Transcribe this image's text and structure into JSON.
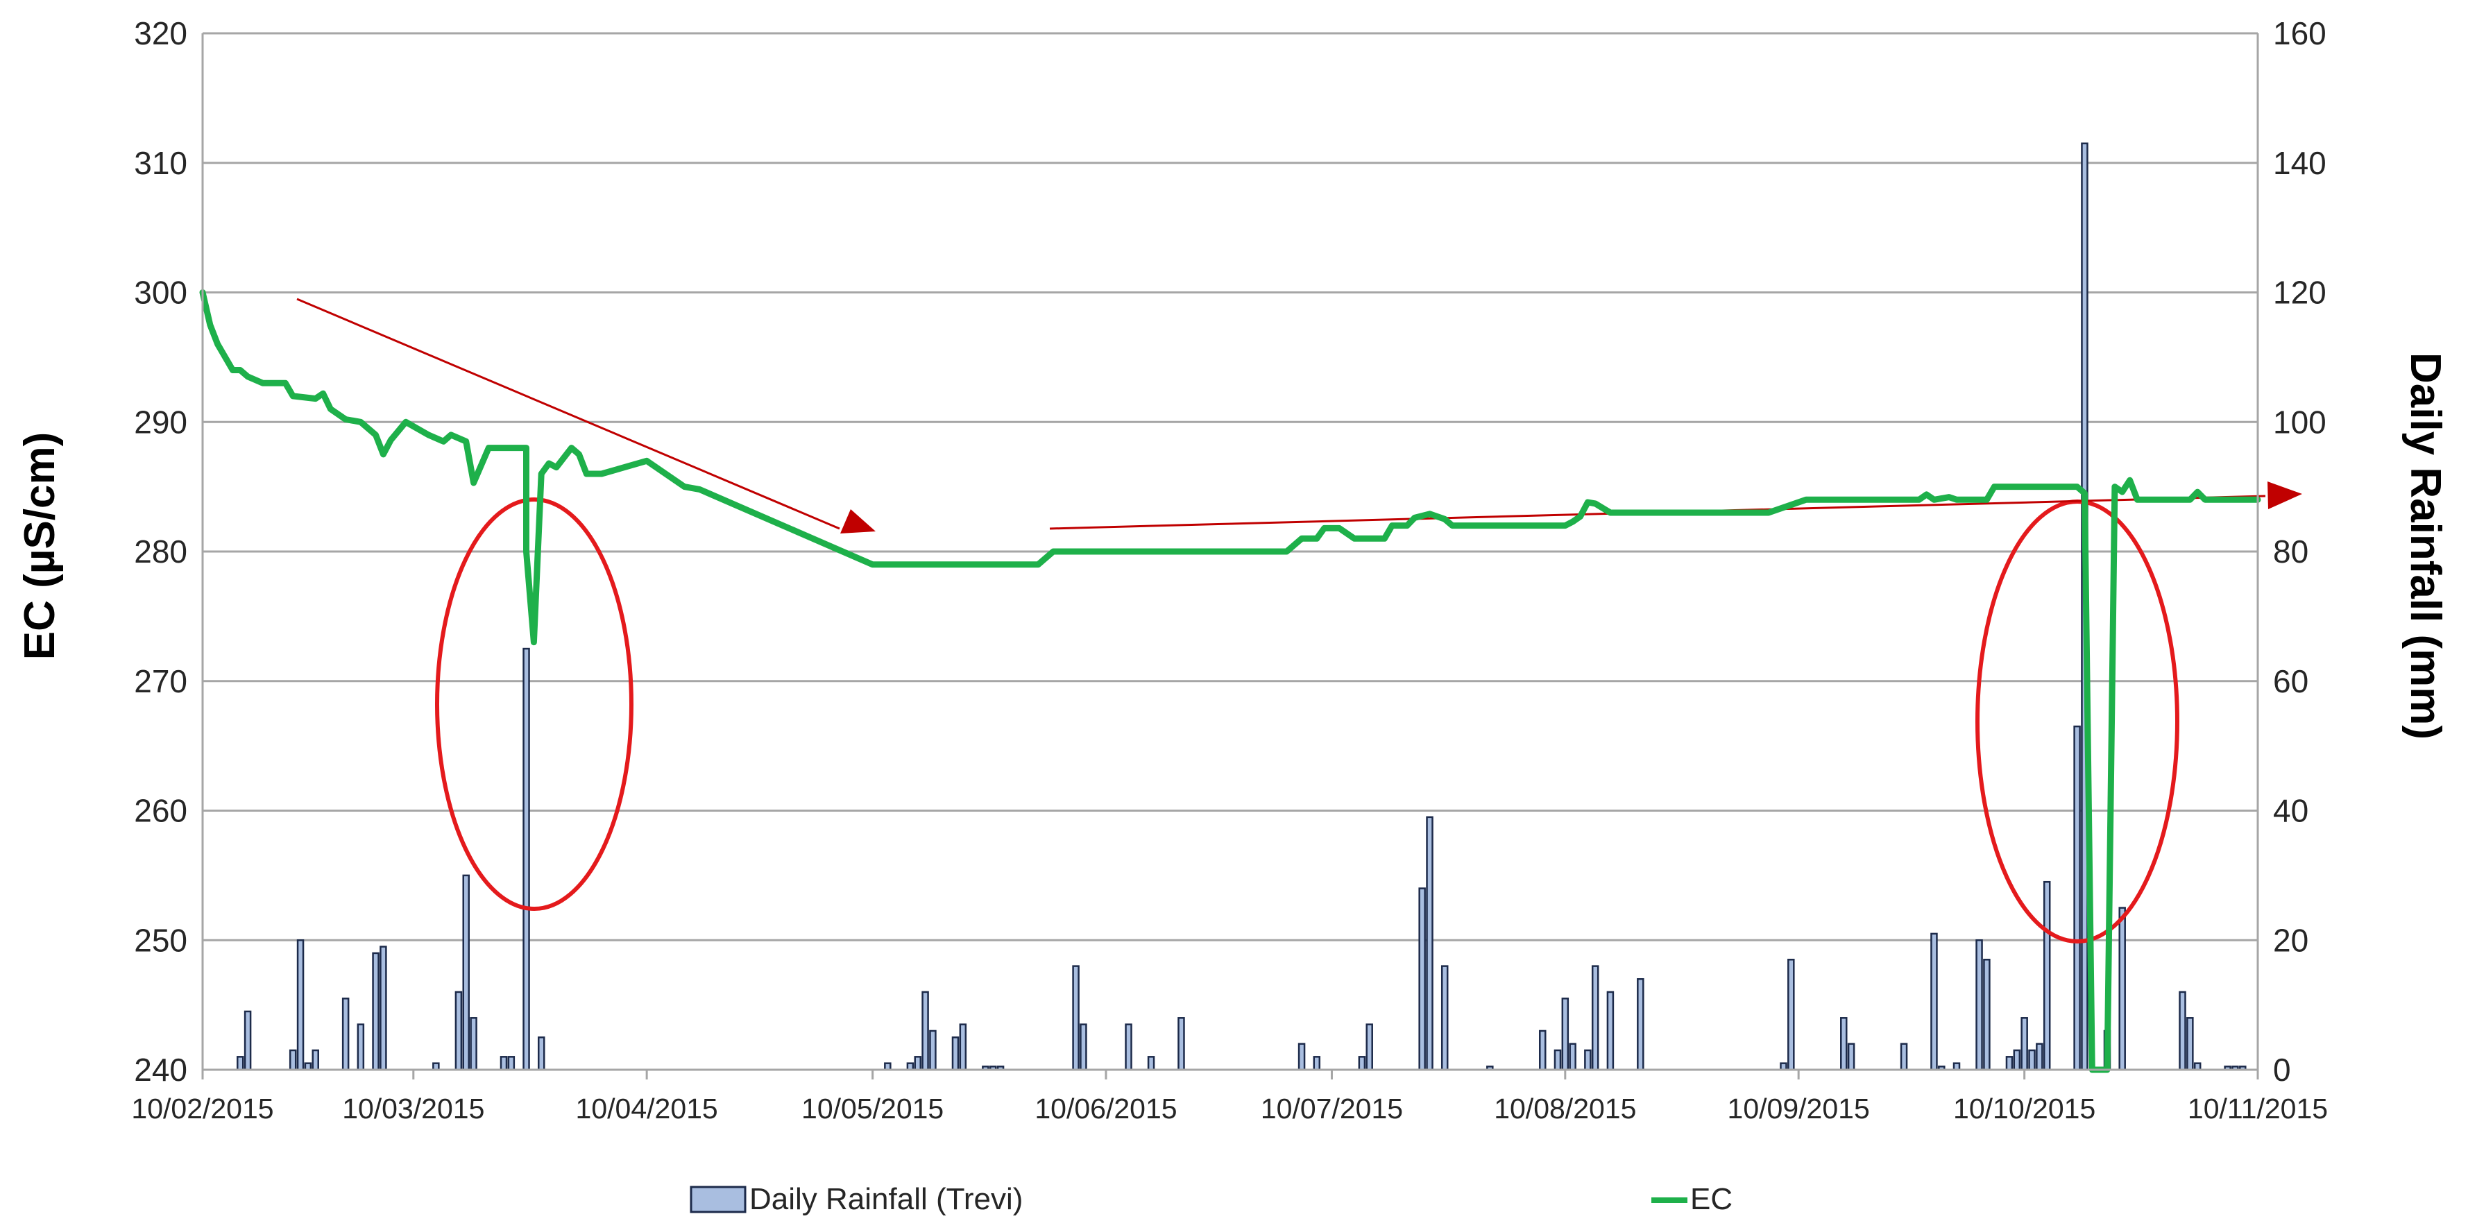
{
  "chart_data": {
    "type": "bar+line",
    "title": "",
    "xlabel": "",
    "ylabel_left": "EC (µS/cm)",
    "ylabel_right": "Daily Rainfall (mm)",
    "ylim_left": [
      240,
      320
    ],
    "ylim_right": [
      0,
      160
    ],
    "yticks_left": [
      240,
      250,
      260,
      270,
      280,
      290,
      300,
      310,
      320
    ],
    "yticks_right": [
      0,
      20,
      40,
      60,
      80,
      100,
      120,
      140,
      160
    ],
    "xlim": [
      "2015-02-10",
      "2015-11-10"
    ],
    "xtick_dates": [
      "2015-02-10",
      "2015-03-10",
      "2015-04-10",
      "2015-05-10",
      "2015-06-10",
      "2015-07-10",
      "2015-08-10",
      "2015-09-10",
      "2015-10-10",
      "2015-11-10"
    ],
    "xtick_labels": [
      "10/02/2015",
      "10/03/2015",
      "10/04/2015",
      "10/05/2015",
      "10/06/2015",
      "10/07/2015",
      "10/08/2015",
      "10/09/2015",
      "10/10/2015",
      "10/11/2015"
    ],
    "grid": true,
    "legend_position": "bottom",
    "colors": {
      "rainfall_fill": "#a9bee0",
      "rainfall_edge": "#1c2a4a",
      "ec_line": "#1eb04a",
      "annotation": "#e41a1c",
      "trend_arrow": "#c00000",
      "gridline": "#a6a6a6"
    },
    "series": [
      {
        "name": "Daily Rainfall (Trevi)",
        "axis": "right",
        "kind": "bar",
        "points": [
          [
            "2015-02-15",
            2
          ],
          [
            "2015-02-16",
            9
          ],
          [
            "2015-02-22",
            3
          ],
          [
            "2015-02-23",
            20
          ],
          [
            "2015-02-24",
            1
          ],
          [
            "2015-02-25",
            3
          ],
          [
            "2015-02-29",
            11
          ],
          [
            "2015-03-03",
            7
          ],
          [
            "2015-03-05",
            18
          ],
          [
            "2015-03-06",
            19
          ],
          [
            "2015-03-13",
            1
          ],
          [
            "2015-03-16",
            12
          ],
          [
            "2015-03-17",
            30
          ],
          [
            "2015-03-18",
            8
          ],
          [
            "2015-03-22",
            2
          ],
          [
            "2015-03-23",
            2
          ],
          [
            "2015-03-25",
            65
          ],
          [
            "2015-03-27",
            5
          ],
          [
            "2015-05-12",
            1
          ],
          [
            "2015-05-15",
            1
          ],
          [
            "2015-05-16",
            2
          ],
          [
            "2015-05-17",
            12
          ],
          [
            "2015-05-18",
            6
          ],
          [
            "2015-05-21",
            5
          ],
          [
            "2015-05-22",
            7
          ],
          [
            "2015-05-25",
            0.5
          ],
          [
            "2015-05-26",
            0.5
          ],
          [
            "2015-05-27",
            0.5
          ],
          [
            "2015-06-06",
            16
          ],
          [
            "2015-06-07",
            7
          ],
          [
            "2015-06-13",
            7
          ],
          [
            "2015-06-16",
            2
          ],
          [
            "2015-06-20",
            8
          ],
          [
            "2015-07-06",
            4
          ],
          [
            "2015-07-08",
            2
          ],
          [
            "2015-07-14",
            2
          ],
          [
            "2015-07-15",
            7
          ],
          [
            "2015-07-22",
            28
          ],
          [
            "2015-07-23",
            39
          ],
          [
            "2015-07-25",
            16
          ],
          [
            "2015-07-31",
            0.5
          ],
          [
            "2015-08-07",
            6
          ],
          [
            "2015-08-09",
            3
          ],
          [
            "2015-08-10",
            11
          ],
          [
            "2015-08-11",
            4
          ],
          [
            "2015-08-13",
            3
          ],
          [
            "2015-08-14",
            16
          ],
          [
            "2015-08-16",
            12
          ],
          [
            "2015-08-20",
            14
          ],
          [
            "2015-09-08",
            1
          ],
          [
            "2015-09-09",
            17
          ],
          [
            "2015-09-16",
            8
          ],
          [
            "2015-09-17",
            4
          ],
          [
            "2015-09-24",
            4
          ],
          [
            "2015-09-28",
            21
          ],
          [
            "2015-09-29",
            0.5
          ],
          [
            "2015-10-01",
            1
          ],
          [
            "2015-10-04",
            20
          ],
          [
            "2015-10-05",
            17
          ],
          [
            "2015-10-08",
            2
          ],
          [
            "2015-10-09",
            3
          ],
          [
            "2015-10-10",
            8
          ],
          [
            "2015-10-11",
            3
          ],
          [
            "2015-10-12",
            4
          ],
          [
            "2015-10-13",
            29
          ],
          [
            "2015-10-17",
            53
          ],
          [
            "2015-10-18",
            143
          ],
          [
            "2015-10-21",
            6
          ],
          [
            "2015-10-23",
            25
          ],
          [
            "2015-10-31",
            12
          ],
          [
            "2015-11-01",
            8
          ],
          [
            "2015-11-02",
            1
          ],
          [
            "2015-11-06",
            0.5
          ],
          [
            "2015-11-07",
            0.5
          ],
          [
            "2015-11-08",
            0.5
          ]
        ]
      },
      {
        "name": "EC",
        "axis": "left",
        "kind": "line",
        "points": [
          [
            "2015-02-10",
            300
          ],
          [
            "2015-02-11",
            297.5
          ],
          [
            "2015-02-12",
            296
          ],
          [
            "2015-02-14",
            294
          ],
          [
            "2015-02-15",
            294
          ],
          [
            "2015-02-16",
            293.5
          ],
          [
            "2015-02-18",
            293
          ],
          [
            "2015-02-21",
            293
          ],
          [
            "2015-02-22",
            292
          ],
          [
            "2015-02-25",
            291.8
          ],
          [
            "2015-02-26",
            292.2
          ],
          [
            "2015-02-27",
            291
          ],
          [
            "2015-03-01",
            290.2
          ],
          [
            "2015-03-03",
            290
          ],
          [
            "2015-03-05",
            289
          ],
          [
            "2015-03-06",
            287.5
          ],
          [
            "2015-03-07",
            288.6
          ],
          [
            "2015-03-09",
            290
          ],
          [
            "2015-03-12",
            289
          ],
          [
            "2015-03-14",
            288.5
          ],
          [
            "2015-03-15",
            289
          ],
          [
            "2015-03-17",
            288.5
          ],
          [
            "2015-03-18",
            285.3
          ],
          [
            "2015-03-20",
            288
          ],
          [
            "2015-03-25",
            288
          ],
          [
            "2015-03-25",
            280
          ],
          [
            "2015-03-26",
            273
          ],
          [
            "2015-03-27",
            286
          ],
          [
            "2015-03-28",
            286.8
          ],
          [
            "2015-03-29",
            286.5
          ],
          [
            "2015-03-31",
            288
          ],
          [
            "2015-04-01",
            287.5
          ],
          [
            "2015-04-02",
            286
          ],
          [
            "2015-04-04",
            286
          ],
          [
            "2015-04-10",
            287
          ],
          [
            "2015-04-15",
            285
          ],
          [
            "2015-04-17",
            284.8
          ],
          [
            "2015-05-10",
            279
          ],
          [
            "2015-06-01",
            279
          ],
          [
            "2015-06-03",
            280
          ],
          [
            "2015-07-04",
            280
          ],
          [
            "2015-07-06",
            281
          ],
          [
            "2015-07-08",
            281
          ],
          [
            "2015-07-09",
            281.8
          ],
          [
            "2015-07-11",
            281.8
          ],
          [
            "2015-07-13",
            281
          ],
          [
            "2015-07-17",
            281
          ],
          [
            "2015-07-18",
            282
          ],
          [
            "2015-07-20",
            282
          ],
          [
            "2015-07-21",
            282.6
          ],
          [
            "2015-07-23",
            282.9
          ],
          [
            "2015-07-25",
            282.5
          ],
          [
            "2015-07-26",
            282
          ],
          [
            "2015-08-10",
            282
          ],
          [
            "2015-08-11",
            282.3
          ],
          [
            "2015-08-12",
            282.7
          ],
          [
            "2015-08-13",
            283.8
          ],
          [
            "2015-08-14",
            283.7
          ],
          [
            "2015-08-16",
            283
          ],
          [
            "2015-09-06",
            283
          ],
          [
            "2015-09-11",
            284
          ],
          [
            "2015-09-26",
            284
          ],
          [
            "2015-09-27",
            284.4
          ],
          [
            "2015-09-28",
            284
          ],
          [
            "2015-09-30",
            284.2
          ],
          [
            "2015-10-01",
            284
          ],
          [
            "2015-10-05",
            284
          ],
          [
            "2015-10-06",
            285
          ],
          [
            "2015-10-17",
            285
          ],
          [
            "2015-10-18",
            284.5
          ],
          [
            "2015-10-19",
            240
          ],
          [
            "2015-10-21",
            240
          ],
          [
            "2015-10-22",
            285
          ],
          [
            "2015-10-23",
            284.6
          ],
          [
            "2015-10-24",
            285.5
          ],
          [
            "2015-10-25",
            284
          ],
          [
            "2015-11-01",
            284
          ],
          [
            "2015-11-02",
            284.6
          ],
          [
            "2015-11-03",
            284
          ],
          [
            "2015-11-10",
            284
          ]
        ]
      }
    ]
  },
  "legend": {
    "rainfall_label": "Daily Rainfall (Trevi)",
    "ec_label": "EC"
  }
}
